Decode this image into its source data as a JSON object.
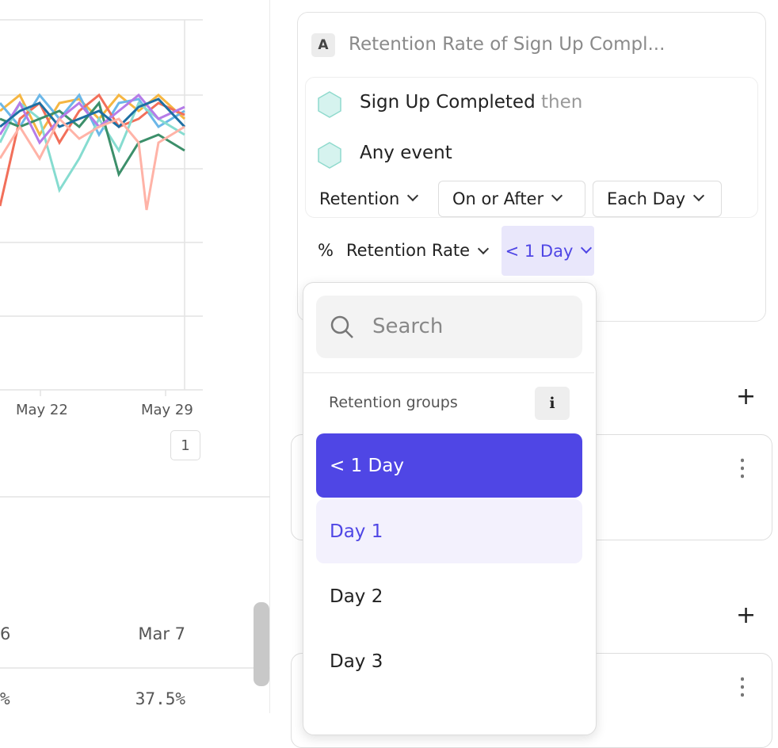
{
  "chart": {
    "x_labels": [
      "May 22",
      "May 29"
    ],
    "page_badge": "1"
  },
  "table": {
    "header": [
      "6",
      "Mar 7"
    ],
    "row": [
      "%",
      "37.5%"
    ]
  },
  "query": {
    "badge": "A",
    "title": "Retention Rate of Sign Up Compl...",
    "events": [
      {
        "name": "Sign Up Completed",
        "suffix": "then"
      },
      {
        "name": "Any event"
      }
    ],
    "options": [
      "Retention",
      "On or After",
      "Each Day"
    ],
    "measure_icon": "%",
    "measure": "Retention Rate",
    "group": "< 1 Day"
  },
  "dropdown": {
    "search_placeholder": "Search",
    "section": "Retention groups",
    "info": "i",
    "items": [
      "< 1 Day",
      "Day 1",
      "Day 2",
      "Day 3"
    ]
  }
}
